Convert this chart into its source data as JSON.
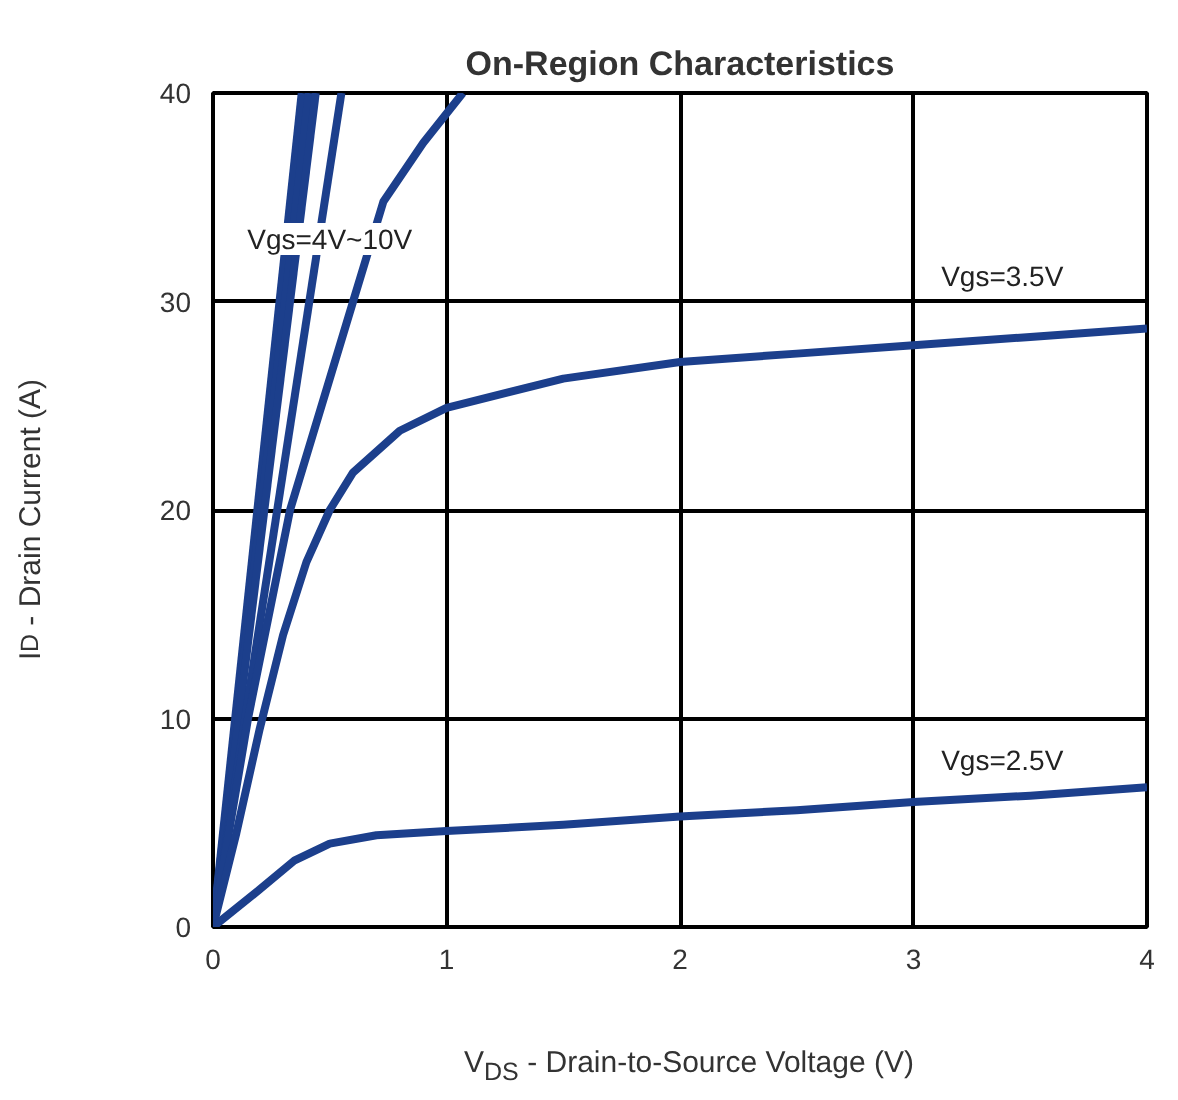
{
  "chart_data": {
    "type": "line",
    "title": "On-Region Characteristics",
    "xlabel": "V$_{DS}$ - Drain-to-Source Voltage (V)",
    "ylabel": "I$_{D}$ - Drain Current (A)",
    "xlim": [
      0,
      4
    ],
    "ylim": [
      0,
      40
    ],
    "xticks": [
      0,
      1,
      2,
      3,
      4
    ],
    "yticks": [
      0,
      10,
      20,
      30,
      40
    ],
    "grid": true,
    "marker": "none",
    "line_style": "solid",
    "series": [
      {
        "color": "#1c3f8c",
        "x": [
          0,
          0.38
        ],
        "values": [
          0,
          40
        ]
      },
      {
        "color": "#1c3f8c",
        "x": [
          0,
          0.41
        ],
        "values": [
          0,
          40
        ]
      },
      {
        "color": "#1c3f8c",
        "x": [
          0,
          0.44
        ],
        "values": [
          0,
          40
        ]
      },
      {
        "color": "#1c3f8c",
        "x": [
          0,
          0.55
        ],
        "values": [
          0,
          40
        ]
      },
      {
        "color": "#1c3f8c",
        "x": [
          0,
          0.15,
          0.33,
          0.6,
          0.73,
          0.9,
          1.07
        ],
        "values": [
          0,
          10,
          20,
          30,
          34.8,
          37.6,
          40
        ]
      },
      {
        "color": "#1c3f8c",
        "x": [
          0,
          0.1,
          0.2,
          0.3,
          0.4,
          0.5,
          0.6,
          0.8,
          1,
          1.5,
          2,
          2.5,
          3,
          3.5,
          4
        ],
        "values": [
          0,
          4.5,
          9.5,
          14,
          17.5,
          20,
          21.8,
          23.8,
          24.9,
          26.3,
          27.1,
          27.5,
          27.9,
          28.3,
          28.7
        ]
      },
      {
        "color": "#1c3f8c",
        "x": [
          0,
          0.2,
          0.35,
          0.5,
          0.7,
          1,
          1.5,
          2,
          2.5,
          3,
          3.5,
          4
        ],
        "values": [
          0,
          1.8,
          3.2,
          4.0,
          4.4,
          4.6,
          4.9,
          5.3,
          5.6,
          6.0,
          6.3,
          6.7
        ]
      }
    ],
    "annotations": [
      "Vgs=4V~10V",
      "Vgs=3.5V",
      "Vgs=2.5V"
    ]
  }
}
